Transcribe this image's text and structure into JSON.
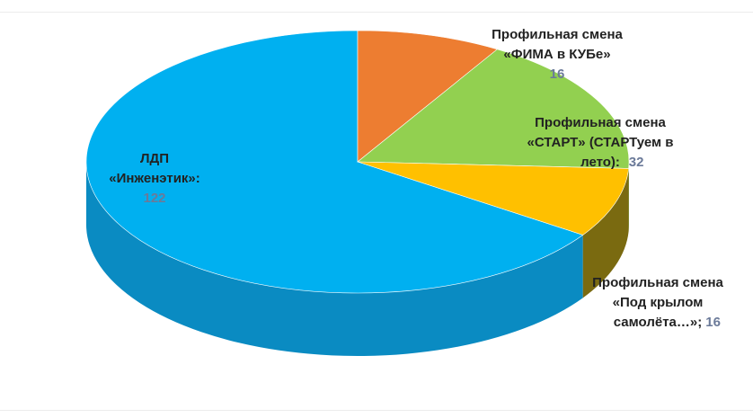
{
  "chart_data": {
    "type": "pie",
    "style": "3d",
    "slices": [
      {
        "label_lines": [
          "ЛДП",
          "«Инженэтик»:"
        ],
        "value": 122,
        "value_text": "122",
        "color": "#00b0f0",
        "side_color": "#0a8bc2"
      },
      {
        "label_lines": [
          "Профильная смена",
          "«ФИМА в КУБе»"
        ],
        "value": 16,
        "value_text": "16",
        "color": "#ed7d31",
        "side_color": "#b85d20"
      },
      {
        "label_lines": [
          "Профильная смена",
          "«СТАРТ» (СТАРТуем в",
          "лето):"
        ],
        "value": 32,
        "value_text": "32",
        "color": "#92d050",
        "side_color": "#6e9e3a"
      },
      {
        "label_lines": [
          "Профильная смена",
          "«Под крылом",
          "самолёта…»;"
        ],
        "value": 16,
        "value_text": "16",
        "color": "#ffc000",
        "side_color": "#7a6a10"
      }
    ]
  }
}
